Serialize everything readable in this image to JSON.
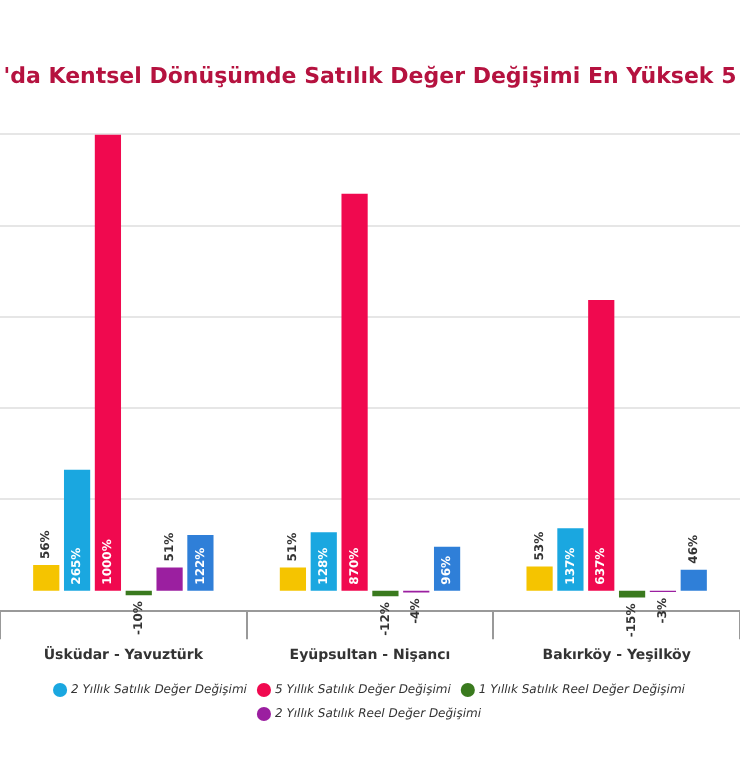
{
  "chart_data": {
    "type": "bar",
    "title": "'da Kentsel Dönüşümde Satılık Değer Değişimi En Yüksek 5",
    "categories": [
      "Üsküdar - Yavuztürk",
      "Eyüpsultan - Nişancı",
      "Bakırköy - Yeşilköy"
    ],
    "series": [
      {
        "color": "#f5c400",
        "values": [
          56,
          51,
          53
        ],
        "value_labels": [
          "56%",
          "51%",
          "53%"
        ]
      },
      {
        "name": "2 Yıllık Satılık Değer Değişimi",
        "color": "#1aa7e0",
        "values": [
          265,
          128,
          137
        ],
        "value_labels": [
          "265%",
          "128%",
          "137%"
        ]
      },
      {
        "name": "5 Yıllık Satılık Değer Değişimi",
        "color": "#f0094f",
        "values": [
          1000,
          870,
          637
        ],
        "value_labels": [
          "1000%",
          "870%",
          "637%"
        ]
      },
      {
        "name": "1 Yıllık Satılık Reel Değer Değişimi",
        "color": "#3a7a1e",
        "values": [
          -10,
          -12,
          -15
        ],
        "value_labels": [
          "-10%",
          "-12%",
          "-15%"
        ]
      },
      {
        "name": "2 Yıllık Satılık Reel Değer Değişimi",
        "color": "#9b1fa0",
        "values": [
          51,
          -4,
          -3
        ],
        "value_labels": [
          "51%",
          "-4%",
          "-3%"
        ]
      },
      {
        "color": "#2f7fd8",
        "values": [
          122,
          96,
          46
        ],
        "value_labels": [
          "122%",
          "96%",
          "46%"
        ]
      }
    ],
    "ylim": [
      -45,
      1000
    ],
    "tick_labels": "x",
    "grid": "y",
    "legend": "bottom"
  }
}
